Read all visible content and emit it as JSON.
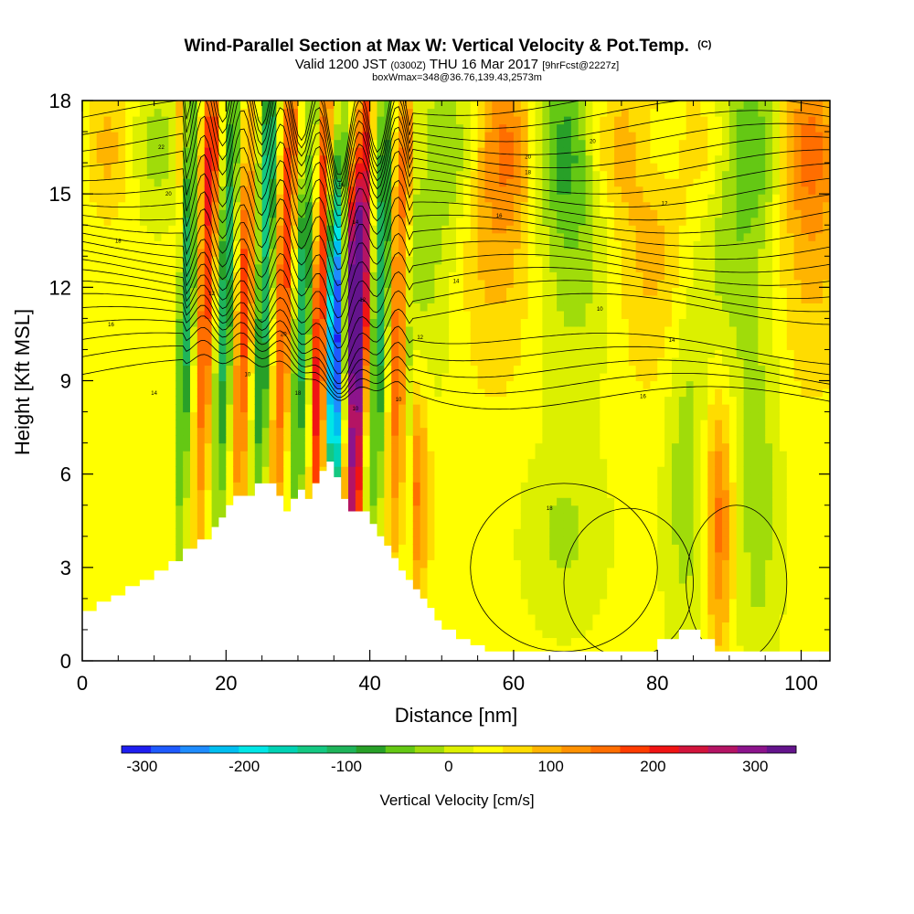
{
  "chart_data": {
    "type": "heatmap",
    "title": "Wind-Parallel Section at Max W: Vertical Velocity & Pot.Temp.",
    "title_suffix": "(C)",
    "subtitle": {
      "valid_prefix": "Valid 1200 JST",
      "utc": "(0300Z)",
      "date": "THU 16 Mar 2017",
      "forecast": "[9hrFcst@2227z]"
    },
    "box_info": "boxWmax=348@36.76,139.43,2573m",
    "xlabel": "Distance [nm]",
    "ylabel": "Height [Kft MSL]",
    "xlim": [
      0,
      104
    ],
    "ylim": [
      0,
      18
    ],
    "xticks": [
      0,
      20,
      40,
      60,
      80,
      100
    ],
    "yticks": [
      0,
      3,
      6,
      9,
      12,
      15,
      18
    ],
    "colorbar": {
      "label": "Vertical Velocity [cm/s]",
      "ticks": [
        -300,
        -200,
        -100,
        0,
        100,
        200,
        300
      ],
      "range": [
        -320,
        340
      ],
      "colors": [
        "#1e1ef0",
        "#1e5aff",
        "#1e8cff",
        "#00bef0",
        "#00e6e6",
        "#00d2b4",
        "#14c882",
        "#1eb45a",
        "#28a028",
        "#64c814",
        "#a0dc0a",
        "#dcf000",
        "#ffff00",
        "#ffdc00",
        "#ffb400",
        "#ff9100",
        "#ff6e00",
        "#ff3c00",
        "#f01414",
        "#d2143c",
        "#b41464",
        "#8c148c",
        "#64148c"
      ]
    },
    "isentrope_labels": [
      "22",
      "20",
      "18",
      "16",
      "14",
      "12",
      "10",
      "20",
      "18",
      "16",
      "14",
      "12",
      "10",
      "10",
      "12",
      "14",
      "16",
      "18",
      "20",
      "10",
      "12",
      "14",
      "16",
      "18",
      "20"
    ],
    "max_w_cm_s": 348,
    "max_w_location": {
      "lat": 36.76,
      "lon": 139.43,
      "alt_m": 2573
    },
    "terrain_kft": [
      [
        0,
        1.6
      ],
      [
        2,
        1.6
      ],
      [
        2,
        1.9
      ],
      [
        4,
        1.9
      ],
      [
        4,
        2.1
      ],
      [
        6,
        2.1
      ],
      [
        6,
        2.4
      ],
      [
        8,
        2.4
      ],
      [
        8,
        2.6
      ],
      [
        10,
        2.6
      ],
      [
        10,
        2.9
      ],
      [
        12,
        2.9
      ],
      [
        12,
        3.2
      ],
      [
        14,
        3.2
      ],
      [
        14,
        3.6
      ],
      [
        16,
        3.6
      ],
      [
        16,
        3.9
      ],
      [
        18,
        3.9
      ],
      [
        18,
        4.3
      ],
      [
        19,
        4.3
      ],
      [
        19,
        4.6
      ],
      [
        20,
        4.6
      ],
      [
        20,
        5.0
      ],
      [
        21,
        5.0
      ],
      [
        21,
        5.3
      ],
      [
        24,
        5.3
      ],
      [
        24,
        5.7
      ],
      [
        27,
        5.7
      ],
      [
        27,
        5.3
      ],
      [
        28,
        5.3
      ],
      [
        28,
        4.8
      ],
      [
        29,
        4.8
      ],
      [
        29,
        5.2
      ],
      [
        30,
        5.2
      ],
      [
        30,
        5.5
      ],
      [
        31,
        5.5
      ],
      [
        31,
        5.2
      ],
      [
        32,
        5.2
      ],
      [
        32,
        5.7
      ],
      [
        33,
        5.7
      ],
      [
        33,
        6.1
      ],
      [
        34,
        6.1
      ],
      [
        34,
        6.4
      ],
      [
        35,
        6.4
      ],
      [
        35,
        5.9
      ],
      [
        36,
        5.9
      ],
      [
        36,
        5.2
      ],
      [
        37,
        5.2
      ],
      [
        37,
        4.8
      ],
      [
        40,
        4.8
      ],
      [
        40,
        4.4
      ],
      [
        41,
        4.4
      ],
      [
        41,
        4.0
      ],
      [
        42,
        4.0
      ],
      [
        42,
        3.7
      ],
      [
        43,
        3.7
      ],
      [
        43,
        3.3
      ],
      [
        44,
        3.3
      ],
      [
        44,
        2.9
      ],
      [
        45,
        2.9
      ],
      [
        45,
        2.6
      ],
      [
        46,
        2.6
      ],
      [
        46,
        2.3
      ],
      [
        47,
        2.3
      ],
      [
        47,
        2.0
      ],
      [
        48,
        2.0
      ],
      [
        48,
        1.7
      ],
      [
        49,
        1.7
      ],
      [
        49,
        1.3
      ],
      [
        50,
        1.3
      ],
      [
        50,
        1.0
      ],
      [
        52,
        1.0
      ],
      [
        52,
        0.7
      ],
      [
        54,
        0.7
      ],
      [
        54,
        0.5
      ],
      [
        56,
        0.5
      ],
      [
        56,
        0.3
      ],
      [
        80,
        0.3
      ],
      [
        80,
        0.7
      ],
      [
        83,
        0.7
      ],
      [
        83,
        1.0
      ],
      [
        86,
        1.0
      ],
      [
        86,
        0.7
      ],
      [
        88,
        0.7
      ],
      [
        88,
        0.3
      ],
      [
        104,
        0.3
      ]
    ]
  }
}
